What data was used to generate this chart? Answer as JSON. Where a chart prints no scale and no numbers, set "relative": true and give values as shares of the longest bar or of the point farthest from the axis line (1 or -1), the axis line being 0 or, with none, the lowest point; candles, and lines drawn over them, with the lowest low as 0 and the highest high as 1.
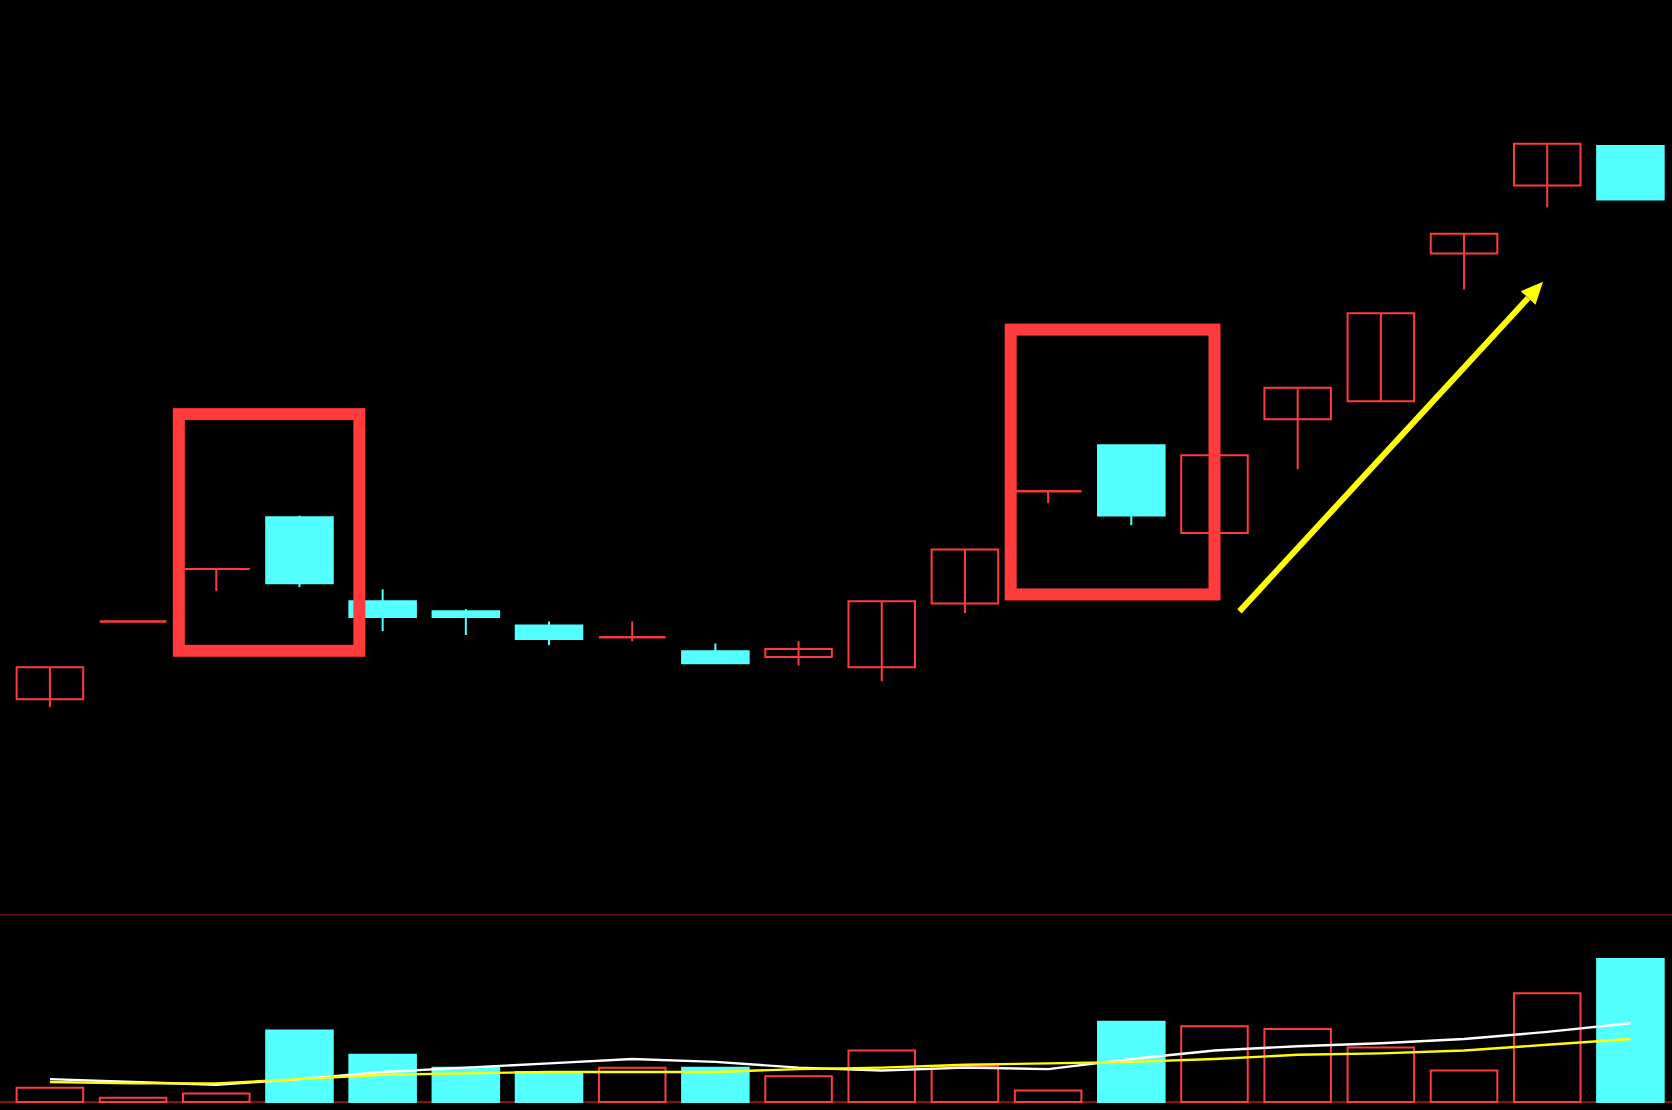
{
  "chart_data": [
    {
      "type": "candlestick",
      "relative": true,
      "categories": [
        null,
        null,
        null,
        null,
        null,
        null,
        null,
        null,
        null,
        null,
        null,
        null,
        null,
        null,
        null,
        null,
        null,
        null,
        null,
        null
      ],
      "ohlc": [
        [
          0.014,
          0.071,
          0,
          0.071
        ],
        [
          0.152,
          0.152,
          0.152,
          0.152
        ],
        [
          0.245,
          0.245,
          0.206,
          0.245
        ],
        [
          0.337,
          0.34,
          0.213,
          0.22
        ],
        [
          0.188,
          0.209,
          0.135,
          0.16
        ],
        [
          0.17,
          0.174,
          0.128,
          0.16
        ],
        [
          0.145,
          0.152,
          0.11,
          0.121
        ],
        [
          0.124,
          0.152,
          0.117,
          0.124
        ],
        [
          0.099,
          0.113,
          0.078,
          0.078
        ],
        [
          0.089,
          0.117,
          0.074,
          0.103
        ],
        [
          0.071,
          0.188,
          0.046,
          0.188
        ],
        [
          0.184,
          0.28,
          0.167,
          0.28
        ],
        [
          0.383,
          0.383,
          0.362,
          0.383
        ],
        [
          0.465,
          0.465,
          0.323,
          0.34
        ],
        [
          0.309,
          0.447,
          0.309,
          0.447
        ],
        [
          0.511,
          0.567,
          0.422,
          0.567
        ],
        [
          0.543,
          0.699,
          0.543,
          0.699
        ],
        [
          0.805,
          0.84,
          0.741,
          0.84
        ],
        [
          0.926,
          1,
          0.887,
          1
        ],
        [
          0.996,
          0.996,
          0.901,
          0.901
        ]
      ],
      "colors": [
        "#ff3b3b",
        "#ff3b3b",
        "#ff3b3b",
        "#54ffff",
        "#54ffff",
        "#54ffff",
        "#54ffff",
        "#ff3b3b",
        "#54ffff",
        "#ff3b3b",
        "#ff3b3b",
        "#ff3b3b",
        "#ff3b3b",
        "#54ffff",
        "#ff3b3b",
        "#ff3b3b",
        "#ff3b3b",
        "#ff3b3b",
        "#ff3b3b",
        "#54ffff"
      ]
    },
    {
      "type": "bar",
      "relative": true,
      "categories": [
        null,
        null,
        null,
        null,
        null,
        null,
        null,
        null,
        null,
        null,
        null,
        null,
        null,
        null,
        null,
        null,
        null,
        null,
        null,
        null
      ],
      "series": [
        {
          "type": "bar",
          "colors": [
            "#ff3b3b",
            "#ff3b3b",
            "#ff3b3b",
            "#54ffff",
            "#54ffff",
            "#54ffff",
            "#54ffff",
            "#ff3b3b",
            "#54ffff",
            "#ff3b3b",
            "#ff3b3b",
            "#ff3b3b",
            "#ff3b3b",
            "#54ffff",
            "#ff3b3b",
            "#ff3b3b",
            "#ff3b3b",
            "#ff3b3b",
            "#ff3b3b",
            "#54ffff"
          ],
          "values": [
            0.1,
            0.03,
            0.06,
            0.5,
            0.33,
            0.24,
            0.21,
            0.24,
            0.24,
            0.18,
            0.36,
            0.25,
            0.08,
            0.56,
            0.53,
            0.51,
            0.38,
            0.22,
            0.76,
            1
          ]
        },
        {
          "type": "line",
          "color": "#ffffff",
          "values": [
            0.16,
            0.14,
            0.12,
            0.16,
            0.21,
            0.24,
            0.27,
            0.3,
            0.28,
            0.24,
            0.22,
            0.24,
            0.23,
            0.3,
            0.36,
            0.39,
            0.41,
            0.44,
            0.49,
            0.55
          ]
        },
        {
          "type": "line",
          "color": "#ffff00",
          "values": [
            0.14,
            0.13,
            0.13,
            0.16,
            0.19,
            0.2,
            0.21,
            0.21,
            0.21,
            0.23,
            0.24,
            0.26,
            0.27,
            0.28,
            0.3,
            0.33,
            0.34,
            0.36,
            0.4,
            0.44
          ]
        }
      ]
    }
  ]
}
